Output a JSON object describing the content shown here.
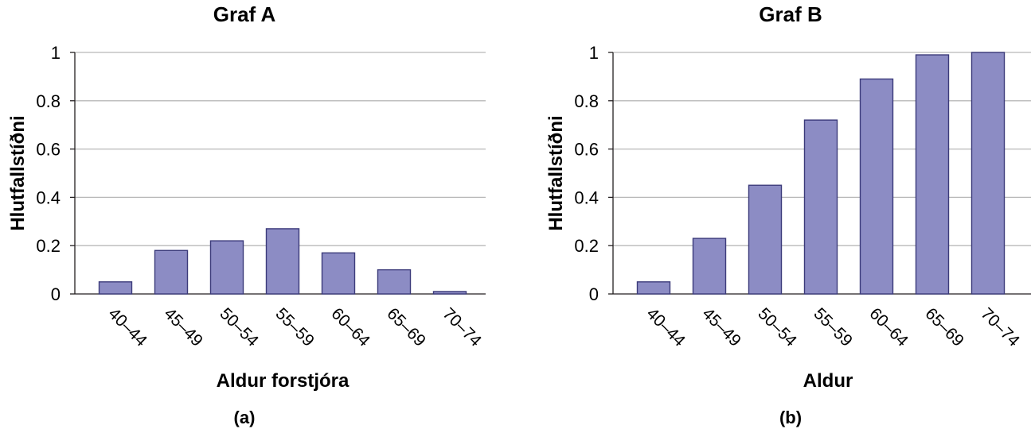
{
  "chart_data": [
    {
      "type": "bar",
      "panel_label": "(a)",
      "title": "Graf A",
      "xlabel": "Aldur forstjóra",
      "ylabel": "Hlutfallstíðni",
      "categories": [
        "40–44",
        "45–49",
        "50–54",
        "55–59",
        "60–64",
        "65–69",
        "70–74"
      ],
      "values": [
        0.05,
        0.18,
        0.22,
        0.27,
        0.17,
        0.1,
        0.01
      ],
      "ylim": [
        0,
        1
      ],
      "yticks": [
        "0",
        "0.2",
        "0.4",
        "0.6",
        "0.8",
        "1"
      ],
      "grid": true,
      "bar_color": "#8c8cc4"
    },
    {
      "type": "bar",
      "panel_label": "(b)",
      "title": "Graf B",
      "xlabel": "Aldur",
      "ylabel": "Hlutfallstíðni",
      "categories": [
        "40–44",
        "45–49",
        "50–54",
        "55–59",
        "60–64",
        "65–69",
        "70–74"
      ],
      "values": [
        0.05,
        0.23,
        0.45,
        0.72,
        0.89,
        0.99,
        1.0
      ],
      "ylim": [
        0,
        1
      ],
      "yticks": [
        "0",
        "0.2",
        "0.4",
        "0.6",
        "0.8",
        "1"
      ],
      "grid": true,
      "bar_color": "#8c8cc4"
    }
  ]
}
